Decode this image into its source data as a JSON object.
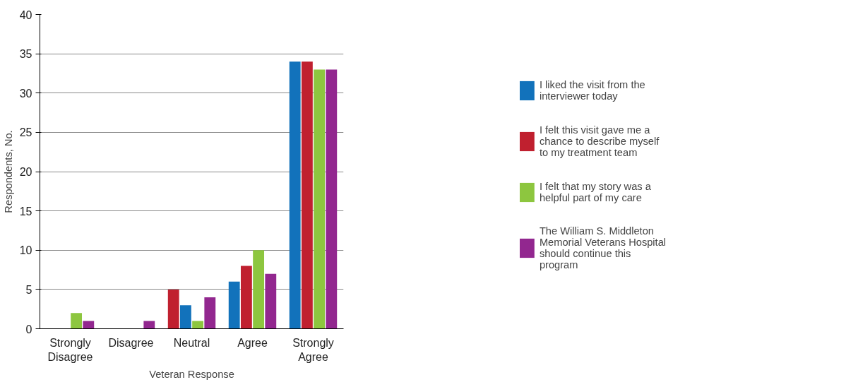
{
  "chart_data": {
    "type": "bar",
    "xlabel": "Veteran Response",
    "ylabel": "Respondents, No.",
    "categories": [
      "Strongly Disagree",
      "Disagree",
      "Neutral",
      "Agree",
      "Strongly Agree"
    ],
    "series": [
      {
        "name": "I liked the visit from the interviewer today",
        "color": "#1272bb",
        "colors": [
          "#1272bb",
          "#1272bb",
          "#c0202f",
          "#1272bb",
          "#1272bb"
        ],
        "values": [
          0,
          0,
          5,
          6,
          34
        ]
      },
      {
        "name": "I felt this visit gave me a chance to describe myself to my treatment team",
        "color": "#c0202f",
        "colors": [
          "#c0202f",
          "#c0202f",
          "#1272bb",
          "#c0202f",
          "#c0202f"
        ],
        "values": [
          0,
          0,
          3,
          8,
          34
        ]
      },
      {
        "name": "I felt that my story was a helpful part of my care",
        "color": "#8dc63f",
        "values": [
          2,
          0,
          1,
          10,
          33
        ]
      },
      {
        "name": "The William S. Middleton Memorial Veterans Hospital should continue this program",
        "color": "#92278f",
        "values": [
          1,
          1,
          4,
          7,
          33
        ]
      }
    ],
    "ylim": [
      0,
      40
    ],
    "yticks": [
      0,
      5,
      10,
      15,
      20,
      25,
      30,
      35,
      40
    ],
    "grid": "y",
    "legend": "right"
  }
}
